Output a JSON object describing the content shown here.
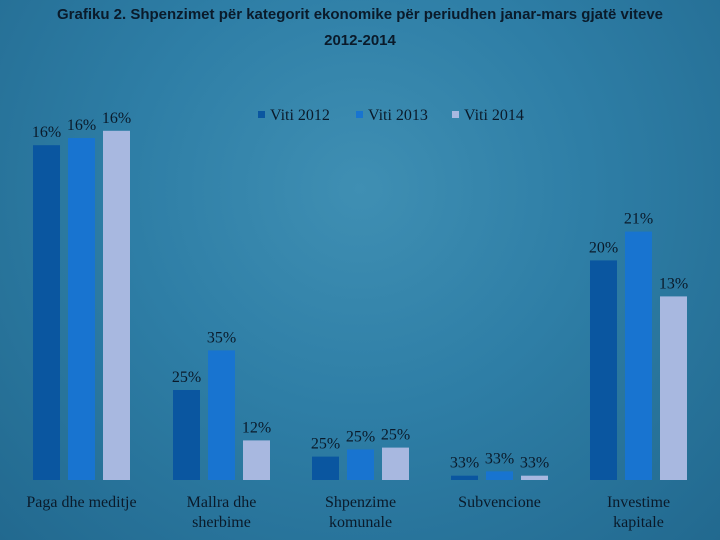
{
  "chart_data": {
    "type": "bar",
    "title_line1": "Grafiku 2.  Shpenzimet për kategorit ekonomike për periudhen janar-mars gjatë viteve",
    "title_line2": "2012-2014",
    "categories": [
      "Paga dhe meditje",
      "Mallra dhe sherbime",
      "Shpenzime komunale",
      "Subvencione",
      "Investime kapitale"
    ],
    "series": [
      {
        "name": "Viti 2012",
        "color": "#0a56a0",
        "values": [
          16,
          25,
          25,
          33,
          20
        ],
        "labels": [
          "16%",
          "25%",
          "25%",
          "33%",
          "20%"
        ]
      },
      {
        "name": "Viti 2013",
        "color": "#1874d0",
        "values": [
          16,
          35,
          25,
          33,
          21
        ],
        "labels": [
          "16%",
          "35%",
          "25%",
          "33%",
          "21%"
        ]
      },
      {
        "name": "Viti 2014",
        "color": "#a8b8e0",
        "values": [
          16,
          12,
          25,
          33,
          13
        ],
        "labels": [
          "16%",
          "12%",
          "25%",
          "33%",
          "13%"
        ]
      }
    ],
    "bar_heights_relative": [
      [
        0.93,
        0.25,
        0.065,
        0.012,
        0.61
      ],
      [
        0.95,
        0.36,
        0.085,
        0.024,
        0.69
      ],
      [
        0.97,
        0.11,
        0.09,
        0.012,
        0.51
      ]
    ],
    "legend_position": "top",
    "xlabel": "",
    "ylabel": ""
  }
}
